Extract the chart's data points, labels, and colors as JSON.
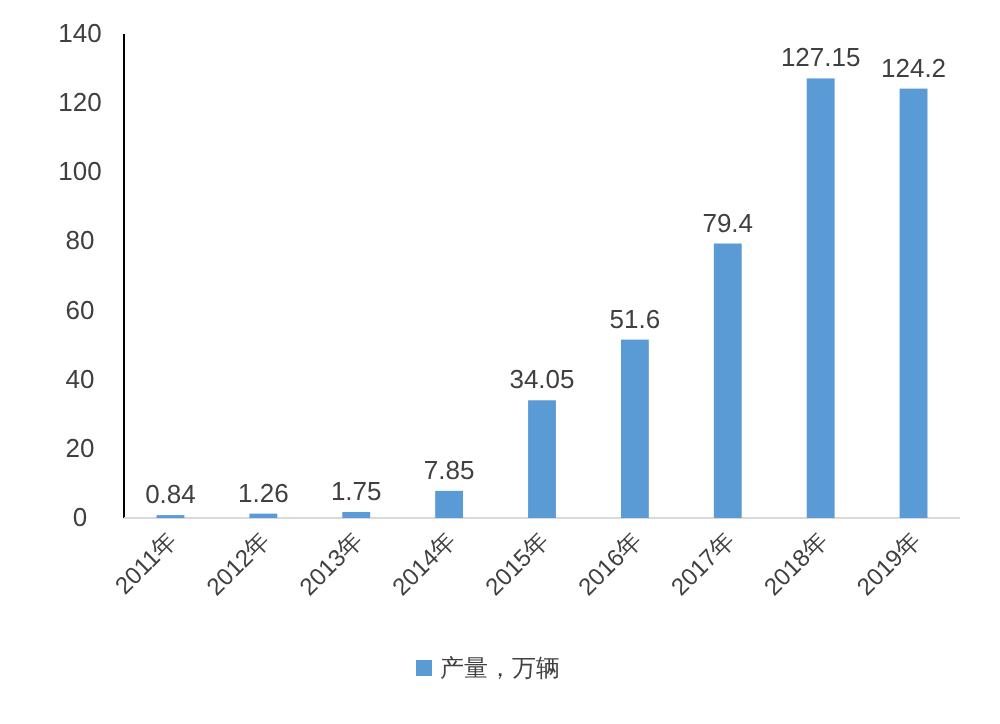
{
  "chart_data": {
    "type": "bar",
    "categories": [
      "2011年",
      "2012年",
      "2013年",
      "2014年",
      "2015年",
      "2016年",
      "2017年",
      "2018年",
      "2019年"
    ],
    "series": [
      {
        "name": "产量，万辆",
        "color": "#5b9bd5",
        "values": [
          0.84,
          1.26,
          1.75,
          7.85,
          34.05,
          51.6,
          79.4,
          127.15,
          124.2
        ]
      }
    ],
    "data_labels": true,
    "ylim": [
      0,
      140
    ],
    "yticks": [
      0,
      20,
      40,
      60,
      80,
      100,
      120,
      140
    ],
    "legend": "bottom"
  }
}
